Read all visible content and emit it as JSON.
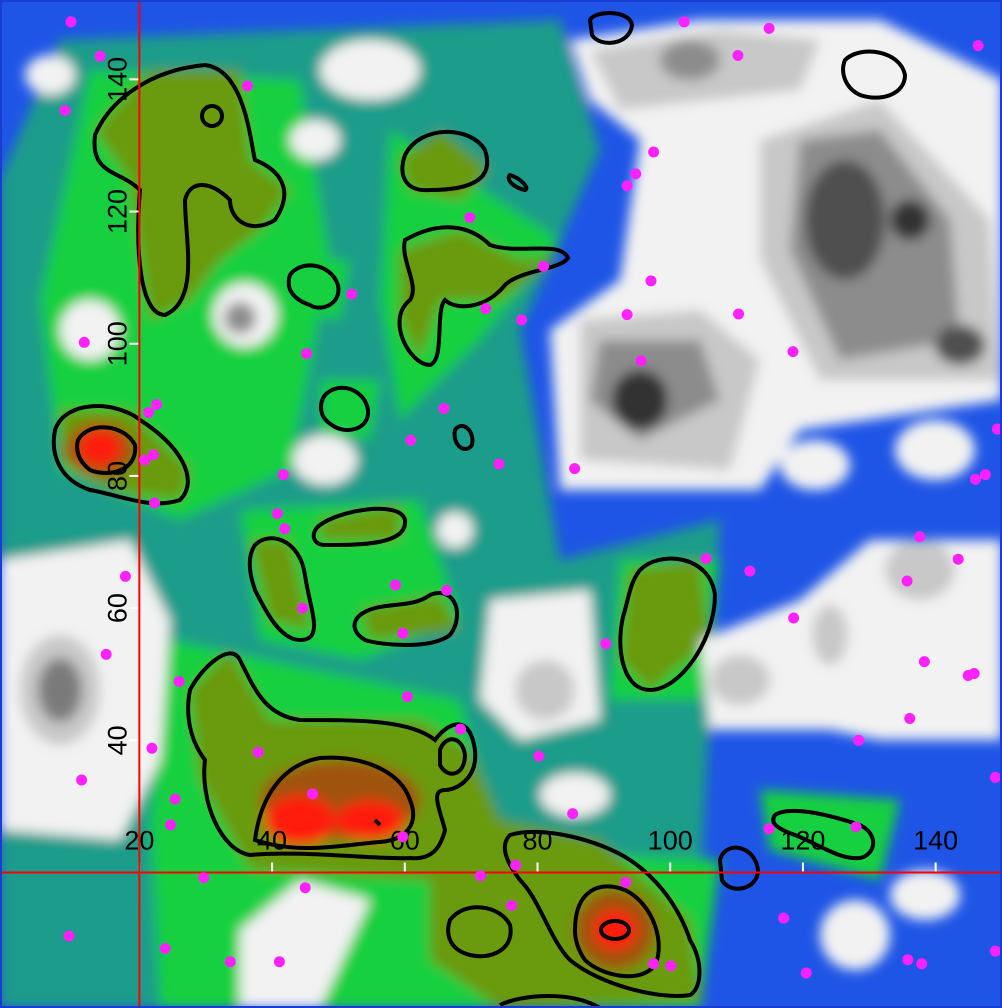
{
  "chart_data": {
    "type": "scatter",
    "x": [
      9.7,
      14.1,
      8.8,
      36.3,
      102.1,
      114.9,
      110.2,
      146.4,
      97.5,
      94.8,
      93.5,
      69.8,
      80.9,
      52.0,
      72.2,
      77.6,
      97.1,
      93.5,
      110.3,
      118.5,
      95.6,
      11.7,
      45.2,
      22.6,
      21.4,
      65.9,
      60.9,
      22.1,
      20.8,
      41.7,
      22.3,
      74.2,
      85.6,
      149.3,
      147.5,
      146.0,
      40.8,
      41.9,
      17.9,
      58.6,
      66.3,
      44.6,
      105.4,
      112.0,
      137.6,
      143.4,
      135.7,
      118.6,
      59.7,
      90.3,
      15.0,
      26.0,
      60.4,
      138.3,
      145.8,
      144.9,
      68.4,
      136.1,
      37.9,
      21.9,
      11.3,
      128.4,
      80.2,
      149.0,
      46.1,
      25.4,
      24.7,
      85.3,
      59.7,
      114.9,
      128.0,
      29.7,
      76.7,
      71.4,
      93.3,
      45.0,
      76.1,
      9.4,
      23.9,
      117.1,
      149.0,
      33.7,
      41.1,
      97.5,
      100.1,
      135.8,
      137.9,
      120.5
    ],
    "y": [
      148.7,
      143.5,
      135.3,
      139.0,
      148.7,
      147.7,
      143.6,
      145.1,
      129.0,
      125.7,
      123.9,
      119.1,
      111.7,
      107.5,
      105.3,
      103.6,
      109.5,
      104.4,
      104.5,
      98.8,
      97.4,
      100.2,
      98.5,
      90.8,
      89.6,
      90.2,
      85.4,
      83.2,
      82.4,
      80.2,
      75.9,
      81.8,
      81.1,
      87.1,
      80.2,
      79.5,
      74.3,
      72.0,
      64.8,
      63.5,
      62.7,
      60.0,
      67.5,
      65.6,
      70.8,
      67.4,
      64.1,
      58.5,
      56.2,
      54.6,
      53.0,
      48.9,
      46.6,
      51.9,
      50.1,
      49.8,
      41.7,
      43.3,
      38.2,
      38.8,
      34.0,
      40.0,
      37.6,
      34.4,
      31.9,
      31.1,
      27.2,
      28.9,
      25.4,
      26.6,
      26.9,
      19.2,
      21.1,
      19.5,
      18.5,
      17.7,
      15.0,
      10.4,
      8.5,
      13.1,
      8.1,
      6.5,
      6.5,
      6.2,
      5.9,
      6.8,
      6.2,
      4.8
    ],
    "color": "#ff22ff",
    "xlim": [
      -1,
      150
    ],
    "ylim": [
      -0.5,
      152
    ],
    "xticks": [
      20,
      40,
      60,
      80,
      100,
      120,
      140
    ],
    "yticks": [
      40,
      60,
      80,
      100,
      120,
      140
    ],
    "x_axis_at": 20,
    "y_axis_at": 20,
    "axis_color": "#ff0000"
  }
}
